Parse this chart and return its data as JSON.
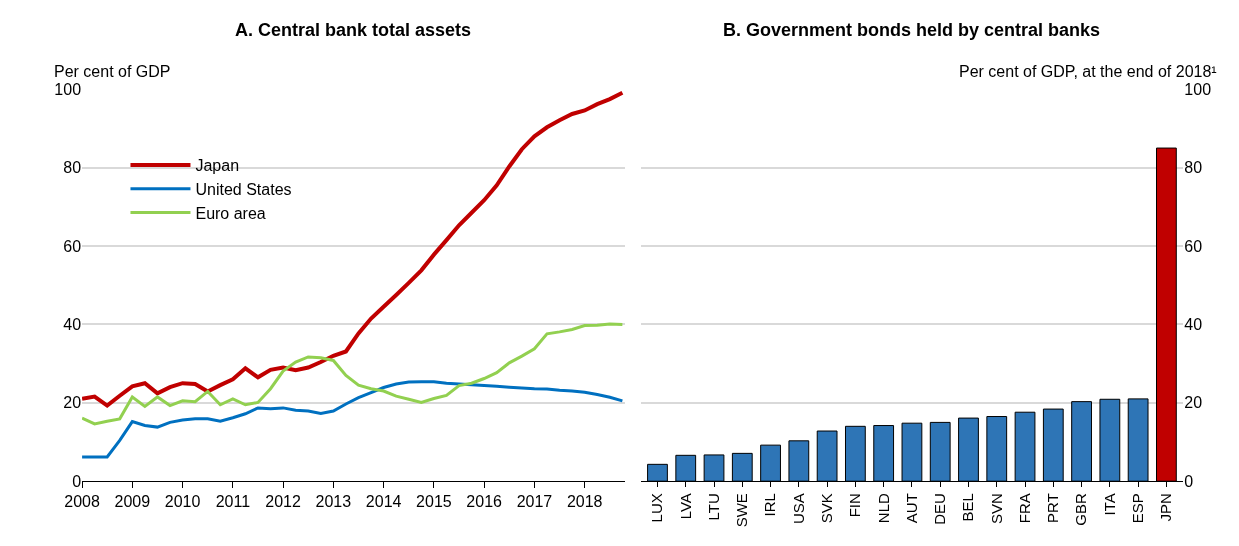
{
  "chart_data": [
    {
      "type": "line",
      "title": "A. Central bank total assets",
      "ylabel": "Per cent of GDP",
      "x": [
        2008,
        2008.25,
        2008.5,
        2008.75,
        2009,
        2009.25,
        2009.5,
        2009.75,
        2010,
        2010.25,
        2010.5,
        2010.75,
        2011,
        2011.25,
        2011.5,
        2011.75,
        2012,
        2012.25,
        2012.5,
        2012.75,
        2013,
        2013.25,
        2013.5,
        2013.75,
        2014,
        2014.25,
        2014.5,
        2014.75,
        2015,
        2015.25,
        2015.5,
        2015.75,
        2016,
        2016.25,
        2016.5,
        2016.75,
        2017,
        2017.25,
        2017.5,
        2017.75,
        2018,
        2018.25,
        2018.5,
        2018.75
      ],
      "series": [
        {
          "name": "Japan",
          "color": "#c00000",
          "values": [
            21.0,
            21.6,
            19.3,
            21.8,
            24.2,
            25.0,
            22.4,
            24.0,
            25.0,
            24.8,
            22.9,
            24.5,
            26.0,
            28.8,
            26.5,
            28.4,
            29.0,
            28.3,
            29.0,
            30.4,
            32.0,
            33.1,
            37.7,
            41.5,
            44.5,
            47.5,
            50.6,
            53.8,
            57.8,
            61.5,
            65.3,
            68.5,
            71.7,
            75.5,
            80.3,
            84.7,
            88.0,
            90.3,
            92.1,
            93.7,
            94.6,
            96.2,
            97.5,
            99.1
          ]
        },
        {
          "name": "United States",
          "color": "#0070c0",
          "values": [
            6.2,
            6.2,
            6.2,
            10.4,
            15.2,
            14.2,
            13.8,
            15.0,
            15.6,
            15.9,
            15.9,
            15.3,
            16.2,
            17.2,
            18.7,
            18.5,
            18.7,
            18.1,
            17.9,
            17.3,
            17.9,
            19.7,
            21.3,
            22.6,
            23.9,
            24.8,
            25.3,
            25.4,
            25.4,
            25.0,
            24.8,
            24.6,
            24.4,
            24.2,
            24.0,
            23.8,
            23.6,
            23.5,
            23.2,
            23.0,
            22.7,
            22.1,
            21.4,
            20.5
          ]
        },
        {
          "name": "Euro area",
          "color": "#92d050",
          "values": [
            16.1,
            14.6,
            15.3,
            15.9,
            21.5,
            19.1,
            21.5,
            19.3,
            20.5,
            20.3,
            22.9,
            19.5,
            21.0,
            19.5,
            20.1,
            23.6,
            28.1,
            30.4,
            31.7,
            31.5,
            30.8,
            27.0,
            24.5,
            23.6,
            23.0,
            21.7,
            20.9,
            20.1,
            21.1,
            21.9,
            24.4,
            25.0,
            26.2,
            27.7,
            30.2,
            31.9,
            33.8,
            37.6,
            38.1,
            38.7,
            39.7,
            39.8,
            40.1,
            40.0
          ]
        }
      ],
      "xlim": [
        2008,
        2018.8
      ],
      "xticks": [
        2008,
        2009,
        2010,
        2011,
        2012,
        2013,
        2014,
        2015,
        2016,
        2017,
        2018
      ],
      "ylim": [
        0,
        100
      ],
      "yticks": [
        0,
        20,
        40,
        60,
        80,
        100
      ],
      "grid": "y",
      "legend": "top left"
    },
    {
      "type": "bar",
      "title": "B. Government bonds held by central banks",
      "ylabel": "Per cent of GDP, at the end of 2018¹",
      "categories": [
        "LUX",
        "LVA",
        "LTU",
        "SWE",
        "IRL",
        "USA",
        "SVK",
        "FIN",
        "NLD",
        "AUT",
        "DEU",
        "BEL",
        "SVN",
        "FRA",
        "PRT",
        "GBR",
        "ITA",
        "ESP",
        "JPN"
      ],
      "values": [
        4.3,
        6.6,
        6.7,
        7.1,
        9.2,
        10.3,
        12.8,
        14.0,
        14.2,
        14.8,
        15.0,
        16.1,
        16.5,
        17.6,
        18.4,
        20.3,
        20.9,
        21.0,
        85.0
      ],
      "colors": [
        "#2e75b6",
        "#2e75b6",
        "#2e75b6",
        "#2e75b6",
        "#2e75b6",
        "#2e75b6",
        "#2e75b6",
        "#2e75b6",
        "#2e75b6",
        "#2e75b6",
        "#2e75b6",
        "#2e75b6",
        "#2e75b6",
        "#2e75b6",
        "#2e75b6",
        "#2e75b6",
        "#2e75b6",
        "#2e75b6",
        "#c00000"
      ],
      "ylim": [
        0,
        100
      ],
      "yticks": [
        0,
        20,
        40,
        60,
        80,
        100
      ],
      "grid": "y"
    }
  ]
}
